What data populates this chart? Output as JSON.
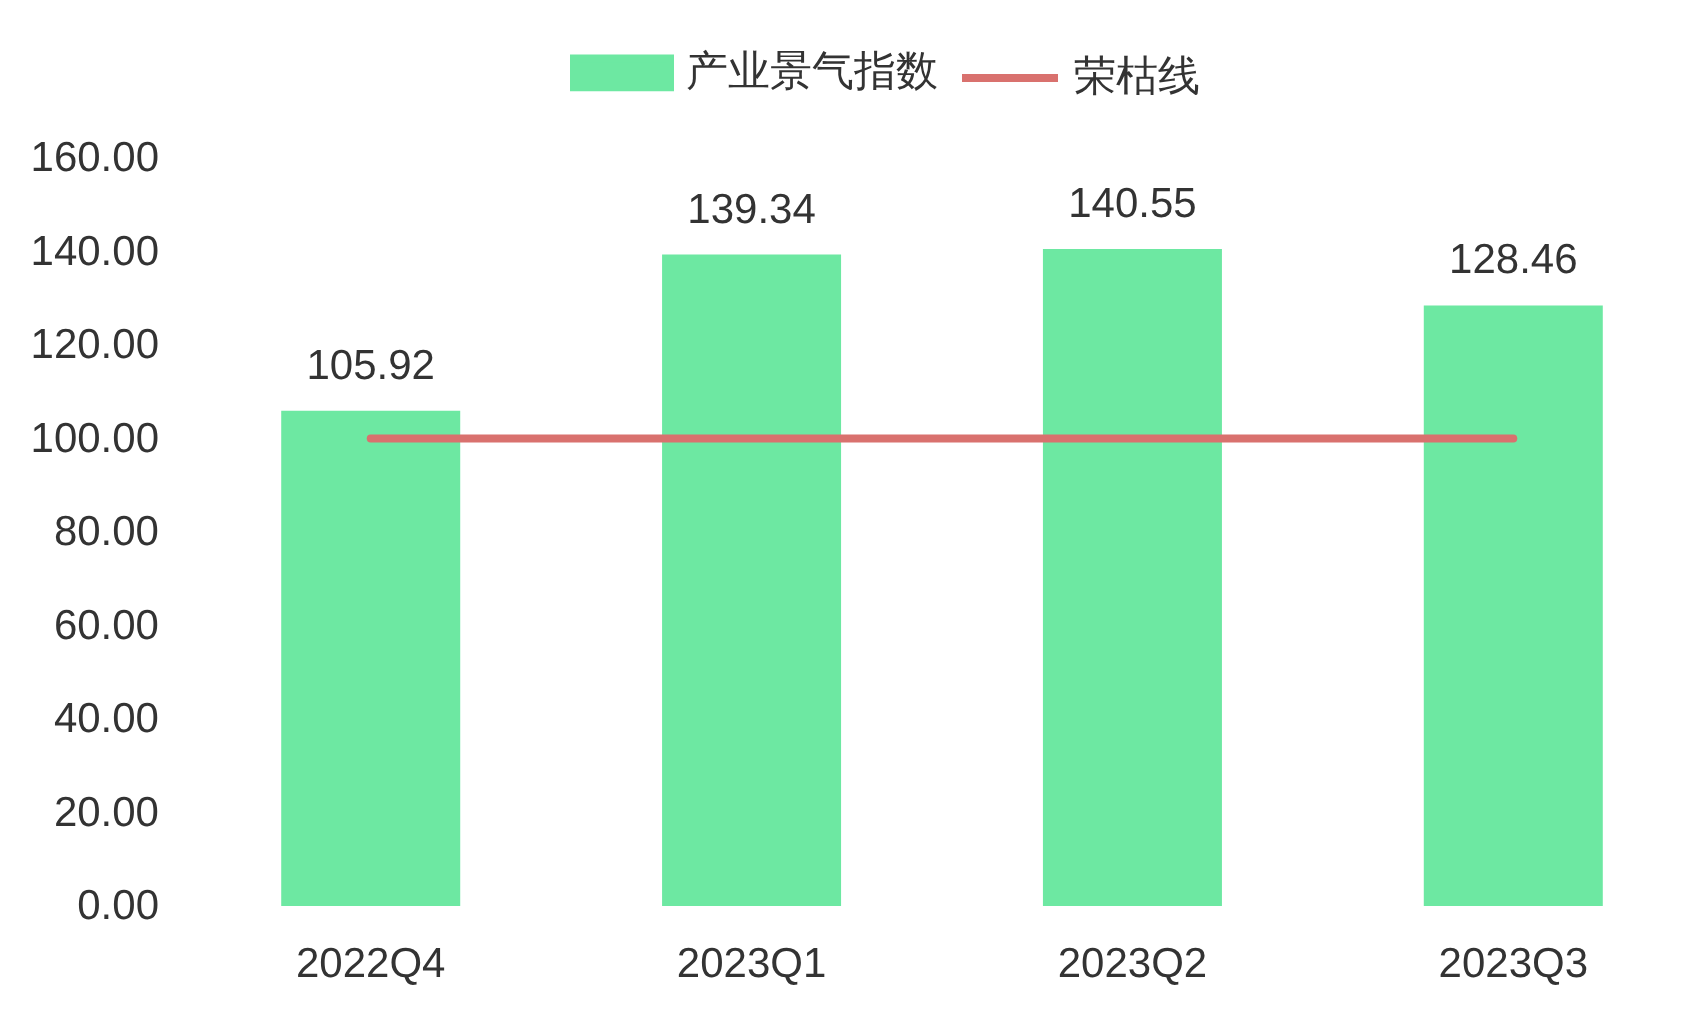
{
  "chart_data": {
    "type": "bar",
    "categories": [
      "2022Q4",
      "2023Q1",
      "2023Q2",
      "2023Q3"
    ],
    "series": [
      {
        "name": "产业景气指数",
        "color": "#6de8a2",
        "values": [
          105.92,
          139.34,
          140.55,
          128.46
        ],
        "value_labels": [
          "105.92",
          "139.34",
          "140.55",
          "128.46"
        ]
      },
      {
        "name": "荣枯线",
        "type": "line",
        "color": "#d9716e",
        "values": [
          100,
          100,
          100,
          100
        ]
      }
    ],
    "ylim": [
      0,
      160
    ],
    "yticks": [
      {
        "value": 0,
        "label": "0.00"
      },
      {
        "value": 20,
        "label": "20.00"
      },
      {
        "value": 40,
        "label": "40.00"
      },
      {
        "value": 60,
        "label": "60.00"
      },
      {
        "value": 80,
        "label": "80.00"
      },
      {
        "value": 100,
        "label": "100.00"
      },
      {
        "value": 120,
        "label": "120.00"
      },
      {
        "value": 140,
        "label": "140.00"
      },
      {
        "value": 160,
        "label": "160.00"
      }
    ],
    "legend": "top"
  }
}
